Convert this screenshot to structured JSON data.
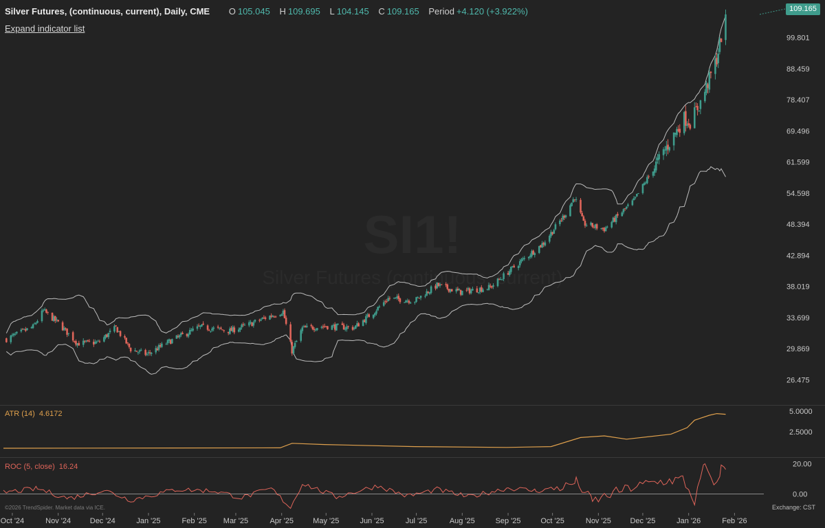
{
  "header": {
    "title": "Silver Futures, (continuous, current), Daily, CME",
    "open_label": "O",
    "open": "105.045",
    "high_label": "H",
    "high": "109.695",
    "low_label": "L",
    "low": "104.145",
    "close_label": "C",
    "close": "109.165",
    "period_label": "Period",
    "period": "+4.120 (+3.922%)",
    "expand_label": "Expand indicator list"
  },
  "price_badge": "109.165",
  "watermark": {
    "symbol": "SI1!",
    "name": "Silver Futures (continuous, current)"
  },
  "indicators": {
    "atr": {
      "label": "ATR (14)",
      "value": "4.6172"
    },
    "roc": {
      "label": "ROC (5, close)",
      "value": "16.24"
    }
  },
  "footer": {
    "copyright": "©2026 TrendSpider. Market data via ICE.",
    "exchange": "Exchange: CST"
  },
  "colors": {
    "up": "#3f9c8c",
    "down": "#e0655a",
    "atr": "#e0a14d",
    "roc": "#e0655a",
    "band": "#bdbdbd",
    "background": "#232323"
  },
  "chart_data": [
    {
      "type": "candlestick",
      "xlabel": "",
      "ylabel": "",
      "x_ticks": [
        "Oct '24",
        "Nov '24",
        "Dec '24",
        "Jan '25",
        "Feb '25",
        "Mar '25",
        "Apr '25",
        "May '25",
        "Jun '25",
        "Jul '25",
        "Aug '25",
        "Sep '25",
        "Oct '25",
        "Nov '25",
        "Dec '25",
        "Jan '26",
        "Feb '26"
      ],
      "x_range": [
        "2024-09-25",
        "2026-02-18"
      ],
      "y_scale": "log",
      "y_ticks": [
        "99.801",
        "88.459",
        "78.407",
        "69.496",
        "61.599",
        "54.598",
        "48.394",
        "42.894",
        "38.019",
        "33.699",
        "29.869",
        "26.475"
      ],
      "y_range": [
        24.6,
        113
      ],
      "close_path": [
        [
          "2024-09-27",
          31.0
        ],
        [
          "2024-10-15",
          32.5
        ],
        [
          "2024-10-22",
          34.6
        ],
        [
          "2024-11-01",
          33.0
        ],
        [
          "2024-11-14",
          30.5
        ],
        [
          "2024-11-28",
          30.6
        ],
        [
          "2024-12-10",
          32.4
        ],
        [
          "2024-12-20",
          29.8
        ],
        [
          "2024-12-31",
          29.2
        ],
        [
          "2025-01-15",
          30.7
        ],
        [
          "2025-02-05",
          32.5
        ],
        [
          "2025-02-25",
          32.0
        ],
        [
          "2025-03-10",
          32.8
        ],
        [
          "2025-03-20",
          33.6
        ],
        [
          "2025-04-02",
          34.5
        ],
        [
          "2025-04-08",
          29.6
        ],
        [
          "2025-04-15",
          32.3
        ],
        [
          "2025-04-30",
          32.6
        ],
        [
          "2025-05-20",
          32.4
        ],
        [
          "2025-06-02",
          34.4
        ],
        [
          "2025-06-12",
          36.3
        ],
        [
          "2025-06-30",
          36.0
        ],
        [
          "2025-07-15",
          38.2
        ],
        [
          "2025-07-31",
          37.2
        ],
        [
          "2025-08-20",
          37.9
        ],
        [
          "2025-09-05",
          41.0
        ],
        [
          "2025-09-25",
          45.0
        ],
        [
          "2025-10-10",
          50.5
        ],
        [
          "2025-10-16",
          53.8
        ],
        [
          "2025-10-22",
          48.5
        ],
        [
          "2025-11-05",
          47.5
        ],
        [
          "2025-11-25",
          53.0
        ],
        [
          "2025-12-10",
          61.0
        ],
        [
          "2025-12-29",
          73.0
        ],
        [
          "2026-01-02",
          72.0
        ],
        [
          "2026-01-10",
          78.5
        ],
        [
          "2026-01-20",
          92.0
        ],
        [
          "2026-01-26",
          109.165
        ]
      ]
    },
    {
      "type": "line",
      "title": "ATR (14)",
      "y_ticks": [
        "5.0000",
        "2.5000"
      ],
      "y_range": [
        0,
        5.5
      ],
      "points": [
        [
          "2024-09-25",
          0.5
        ],
        [
          "2025-03-31",
          0.55
        ],
        [
          "2025-04-08",
          1.1
        ],
        [
          "2025-04-30",
          0.95
        ],
        [
          "2025-06-30",
          0.7
        ],
        [
          "2025-08-31",
          0.6
        ],
        [
          "2025-09-30",
          0.7
        ],
        [
          "2025-10-20",
          1.8
        ],
        [
          "2025-11-05",
          2.0
        ],
        [
          "2025-11-20",
          1.6
        ],
        [
          "2025-12-20",
          2.2
        ],
        [
          "2025-12-31",
          3.0
        ],
        [
          "2026-01-05",
          3.9
        ],
        [
          "2026-01-15",
          4.5
        ],
        [
          "2026-01-20",
          4.7
        ],
        [
          "2026-01-26",
          4.6172
        ]
      ]
    },
    {
      "type": "line",
      "title": "ROC (5, close)",
      "y_ticks": [
        "20.00",
        "0.00"
      ],
      "y_range": [
        -8,
        23
      ],
      "points": [
        [
          "2024-09-25",
          1.0
        ],
        [
          "2024-10-18",
          3.5
        ],
        [
          "2024-11-08",
          -3.0
        ],
        [
          "2024-12-02",
          2.5
        ],
        [
          "2024-12-20",
          -4.0
        ],
        [
          "2025-01-20",
          3.0
        ],
        [
          "2025-02-15",
          2.0
        ],
        [
          "2025-03-05",
          -2.5
        ],
        [
          "2025-03-25",
          3.5
        ],
        [
          "2025-04-07",
          -9.0
        ],
        [
          "2025-04-15",
          7.0
        ],
        [
          "2025-05-08",
          -2.0
        ],
        [
          "2025-06-05",
          5.5
        ],
        [
          "2025-06-25",
          -1.5
        ],
        [
          "2025-07-15",
          3.0
        ],
        [
          "2025-08-05",
          -2.0
        ],
        [
          "2025-09-01",
          4.0
        ],
        [
          "2025-09-20",
          2.0
        ],
        [
          "2025-10-10",
          5.0
        ],
        [
          "2025-10-17",
          8.0
        ],
        [
          "2025-10-28",
          -5.0
        ],
        [
          "2025-11-15",
          2.0
        ],
        [
          "2025-12-05",
          7.0
        ],
        [
          "2025-12-28",
          10.0
        ],
        [
          "2026-01-05",
          -5.0
        ],
        [
          "2026-01-12",
          20.0
        ],
        [
          "2026-01-18",
          3.0
        ],
        [
          "2026-01-23",
          17.0
        ],
        [
          "2026-01-26",
          16.24
        ]
      ]
    }
  ]
}
